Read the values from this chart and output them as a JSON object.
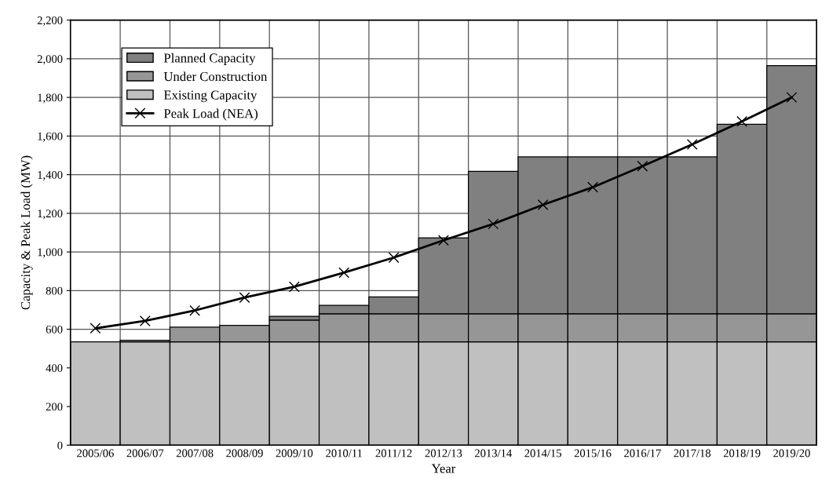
{
  "chart_data": {
    "type": "bar",
    "stacked": true,
    "xlabel": "Year",
    "ylabel": "Capacity & Peak Load (MW)",
    "categories": [
      "2005/06",
      "2006/07",
      "2007/08",
      "2008/09",
      "2009/10",
      "2010/11",
      "2011/12",
      "2012/13",
      "2013/14",
      "2014/15",
      "2015/16",
      "2016/17",
      "2017/18",
      "2018/19",
      "2019/20"
    ],
    "series": [
      {
        "name": "Existing Capacity",
        "color": "#c0c0c0",
        "values": [
          535,
          535,
          535,
          535,
          535,
          535,
          535,
          535,
          535,
          535,
          535,
          535,
          535,
          535,
          535
        ]
      },
      {
        "name": "Under Construction",
        "color": "#969696",
        "values": [
          null,
          8,
          76,
          85,
          112,
          145,
          145,
          145,
          145,
          145,
          145,
          145,
          145,
          145,
          145
        ]
      },
      {
        "name": "Planned Capacity",
        "color": "#808080",
        "values": [
          null,
          null,
          null,
          null,
          20,
          44,
          87,
          393,
          737,
          812,
          812,
          812,
          812,
          981,
          1284
        ]
      },
      {
        "name": "Peak Load (NEA)",
        "type": "line",
        "color": "#000000",
        "marker": "cross",
        "values": [
          605,
          643,
          697,
          764,
          820,
          893,
          971,
          1060,
          1145,
          1244,
          1335,
          1444,
          1557,
          1676,
          1800
        ]
      }
    ],
    "ylim": [
      0,
      2200
    ],
    "yticks": [
      0,
      200,
      400,
      600,
      800,
      {
        "value": 1000,
        "label": "1,000"
      },
      {
        "value": 1200,
        "label": "1,200"
      },
      {
        "value": 1400,
        "label": "1,400"
      },
      {
        "value": 1600,
        "label": "1,600"
      },
      {
        "value": 1800,
        "label": "1,800"
      },
      {
        "value": 2000,
        "label": "2,000"
      },
      {
        "value": 2200,
        "label": "2,200"
      }
    ],
    "grid": true,
    "legend": "top left"
  }
}
